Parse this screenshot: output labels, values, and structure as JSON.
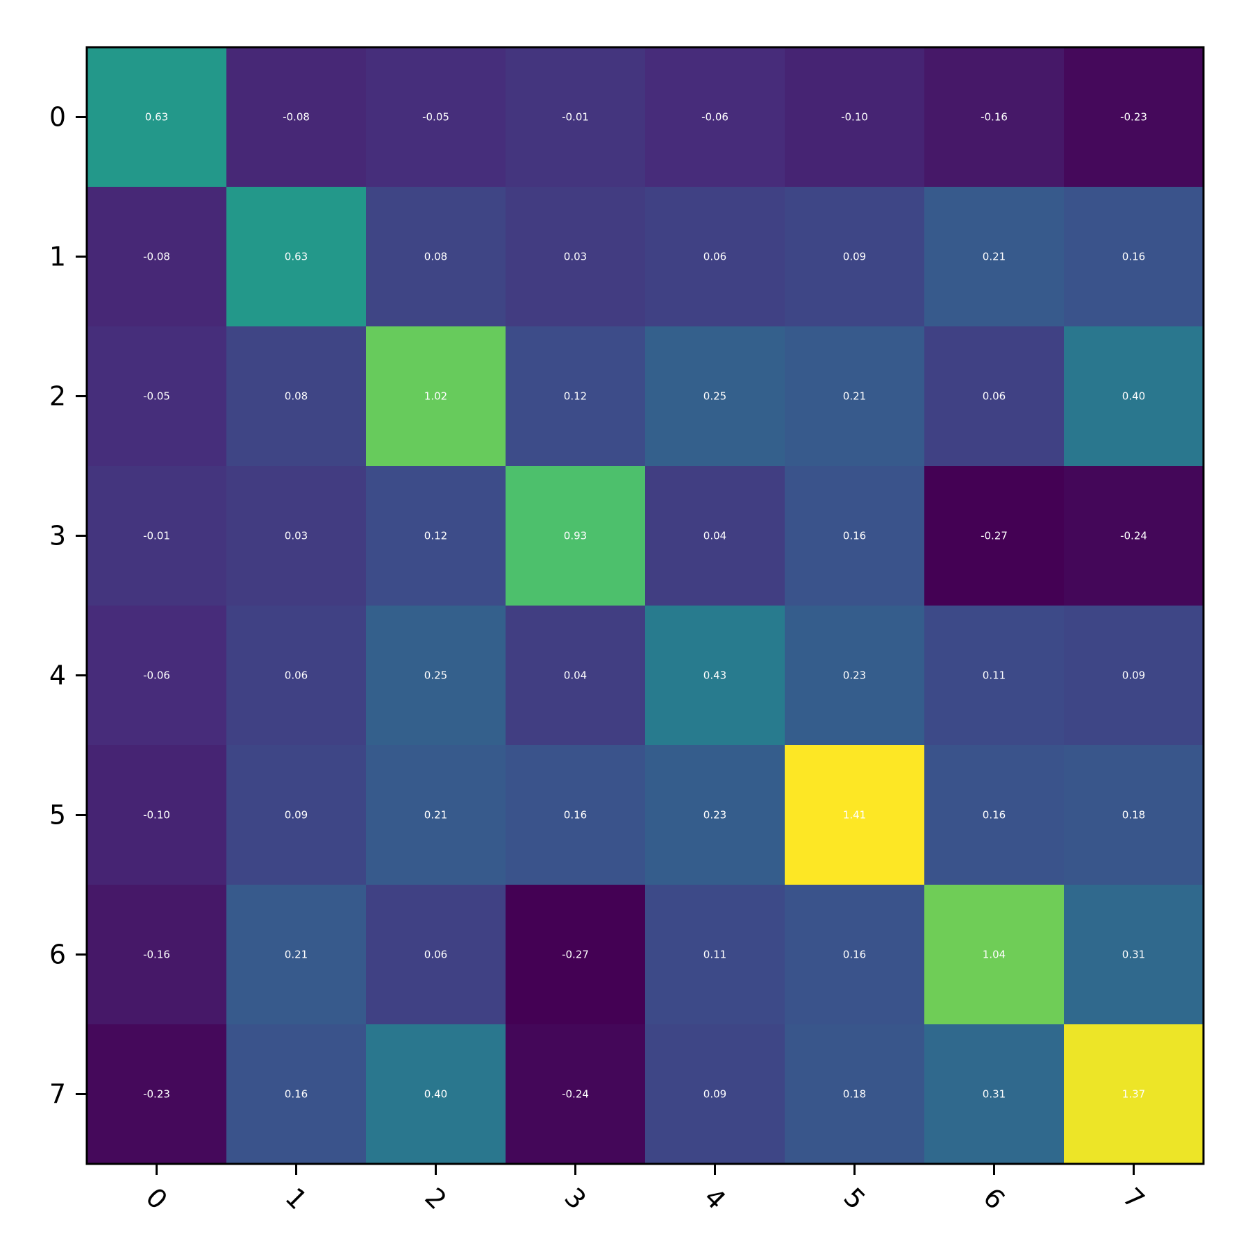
{
  "chart_data": {
    "type": "heatmap",
    "title": "",
    "xlabel": "",
    "ylabel": "",
    "colormap": "viridis",
    "value_range": [
      -0.27,
      1.41
    ],
    "value_format": "0.00",
    "x_categories": [
      "0",
      "1",
      "2",
      "3",
      "4",
      "5",
      "6",
      "7"
    ],
    "y_categories": [
      "0",
      "1",
      "2",
      "3",
      "4",
      "5",
      "6",
      "7"
    ],
    "x_tick_rotation_deg": 45,
    "grid": false,
    "colorbar": false,
    "values": [
      [
        0.63,
        -0.08,
        -0.05,
        -0.01,
        -0.06,
        -0.1,
        -0.16,
        -0.23
      ],
      [
        -0.08,
        0.63,
        0.08,
        0.03,
        0.06,
        0.09,
        0.21,
        0.16
      ],
      [
        -0.05,
        0.08,
        1.02,
        0.12,
        0.25,
        0.21,
        0.06,
        0.4
      ],
      [
        -0.01,
        0.03,
        0.12,
        0.93,
        0.04,
        0.16,
        -0.27,
        -0.24
      ],
      [
        -0.06,
        0.06,
        0.25,
        0.04,
        0.43,
        0.23,
        0.11,
        0.09
      ],
      [
        -0.1,
        0.09,
        0.21,
        0.16,
        0.23,
        1.41,
        0.16,
        0.18
      ],
      [
        -0.16,
        0.21,
        0.06,
        -0.27,
        0.11,
        0.16,
        1.04,
        0.31
      ],
      [
        -0.23,
        0.16,
        0.4,
        -0.24,
        0.09,
        0.18,
        0.31,
        1.37
      ]
    ],
    "colors": {
      "text": "#ffffff",
      "axis": "#000000",
      "background": "#ffffff"
    }
  }
}
